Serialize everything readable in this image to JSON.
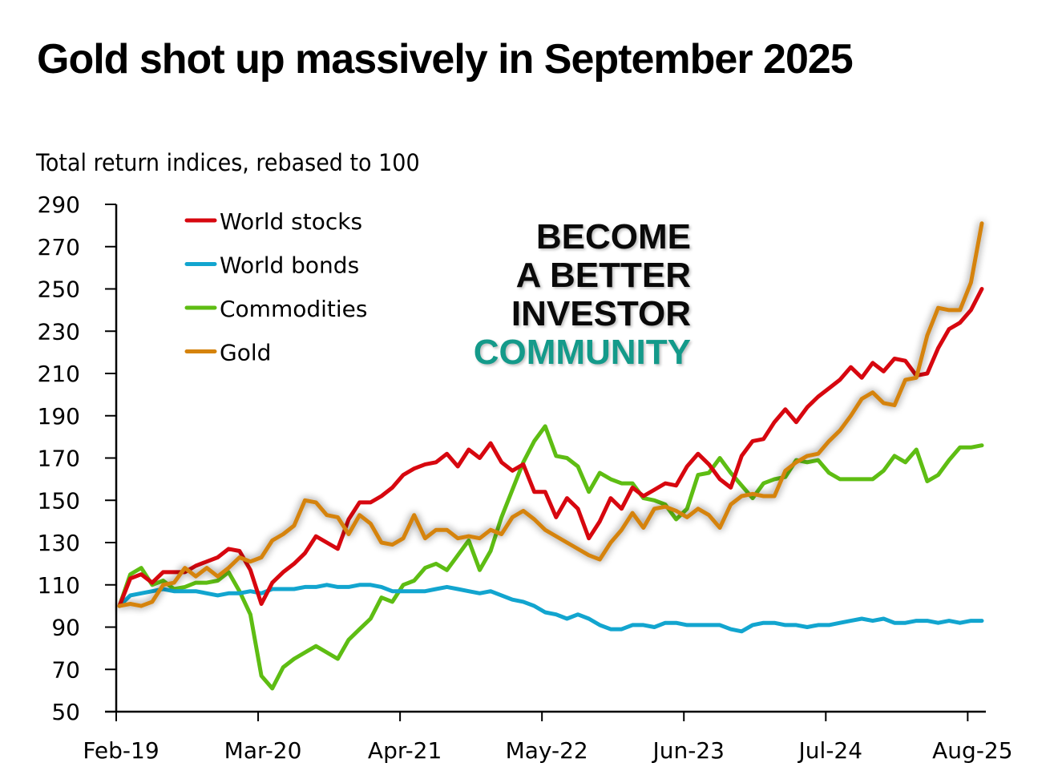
{
  "title": "Gold shot up massively in September 2025",
  "subtitle": "Total return indices, rebased to 100",
  "promo": {
    "lines": [
      "BECOME",
      "A BETTER",
      "INVESTOR"
    ],
    "accent_line": "COMMUNITY",
    "accent_color": "#149a8a"
  },
  "chart_data": {
    "type": "line",
    "title": "Gold shot up massively in September 2025",
    "ylabel": "Total return indices, rebased to 100",
    "xlabel": "",
    "ylim": [
      50,
      290
    ],
    "yticks": [
      50,
      70,
      90,
      110,
      130,
      150,
      170,
      190,
      210,
      230,
      250,
      270,
      290
    ],
    "x_start": "Feb-19",
    "x_end": "Sep-25",
    "x_frequency": "monthly",
    "xtick_labels": [
      "Feb-19",
      "Mar-20",
      "Apr-21",
      "May-22",
      "Jun-23",
      "Jul-24",
      "Aug-25"
    ],
    "xtick_index": [
      0,
      13,
      26,
      39,
      52,
      65,
      78
    ],
    "grid": false,
    "legend_position": "top-left",
    "series": [
      {
        "name": "World stocks",
        "color": "#d7070f",
        "shadow": false,
        "values": [
          100,
          113,
          115,
          111,
          116,
          116,
          116,
          119,
          121,
          123,
          127,
          126,
          117,
          101,
          111,
          116,
          120,
          125,
          133,
          130,
          127,
          141,
          149,
          149,
          152,
          156,
          162,
          165,
          167,
          168,
          172,
          166,
          174,
          170,
          177,
          168,
          164,
          167,
          154,
          154,
          142,
          151,
          146,
          132,
          140,
          151,
          146,
          156,
          152,
          155,
          158,
          157,
          166,
          172,
          167,
          160,
          156,
          171,
          178,
          179,
          187,
          193,
          187,
          194,
          199,
          203,
          207,
          213,
          208,
          215,
          211,
          217,
          216,
          209,
          210,
          222,
          231,
          234,
          240,
          250
        ]
      },
      {
        "name": "World bonds",
        "color": "#12a5cf",
        "shadow": false,
        "values": [
          100,
          105,
          106,
          107,
          108,
          107,
          107,
          107,
          106,
          105,
          106,
          106,
          107,
          106,
          108,
          108,
          108,
          109,
          109,
          110,
          109,
          109,
          110,
          110,
          109,
          107,
          107,
          107,
          107,
          108,
          109,
          108,
          107,
          106,
          107,
          105,
          103,
          102,
          100,
          97,
          96,
          94,
          96,
          94,
          91,
          89,
          89,
          91,
          91,
          90,
          92,
          92,
          91,
          91,
          91,
          91,
          89,
          88,
          91,
          92,
          92,
          91,
          91,
          90,
          91,
          91,
          92,
          93,
          94,
          93,
          94,
          92,
          92,
          93,
          93,
          92,
          93,
          92,
          93,
          93
        ]
      },
      {
        "name": "Commodities",
        "color": "#5ebd13",
        "shadow": false,
        "values": [
          100,
          115,
          118,
          110,
          112,
          108,
          109,
          111,
          111,
          112,
          116,
          107,
          96,
          67,
          61,
          71,
          75,
          78,
          81,
          78,
          75,
          84,
          89,
          94,
          104,
          102,
          110,
          112,
          118,
          120,
          117,
          124,
          131,
          117,
          126,
          142,
          155,
          168,
          178,
          185,
          171,
          170,
          166,
          154,
          163,
          160,
          158,
          158,
          151,
          150,
          148,
          141,
          146,
          162,
          163,
          170,
          163,
          157,
          151,
          158,
          160,
          161,
          169,
          168,
          169,
          163,
          160,
          160,
          160,
          160,
          164,
          171,
          168,
          174,
          159,
          162,
          169,
          175,
          175,
          176
        ]
      },
      {
        "name": "Gold",
        "color": "#d5830c",
        "shadow": true,
        "values": [
          100,
          101,
          100,
          102,
          110,
          111,
          118,
          114,
          118,
          114,
          118,
          123,
          121,
          123,
          131,
          134,
          138,
          150,
          149,
          143,
          142,
          134,
          143,
          139,
          130,
          129,
          132,
          143,
          132,
          136,
          136,
          132,
          133,
          132,
          136,
          134,
          142,
          145,
          141,
          136,
          133,
          130,
          127,
          124,
          122,
          130,
          136,
          144,
          137,
          146,
          147,
          145,
          142,
          146,
          143,
          137,
          148,
          152,
          153,
          152,
          152,
          164,
          168,
          171,
          172,
          178,
          183,
          190,
          198,
          201,
          196,
          195,
          207,
          208,
          228,
          241,
          240,
          240,
          253,
          281
        ]
      }
    ]
  }
}
